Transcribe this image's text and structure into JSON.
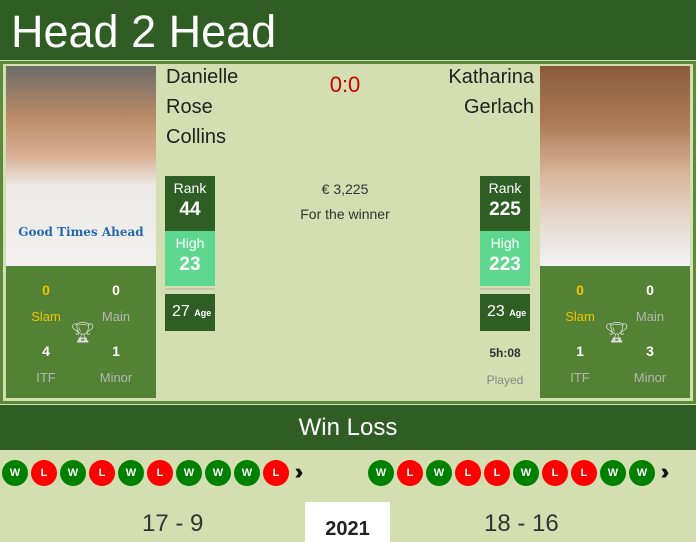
{
  "title": "Head 2 Head",
  "score": "0:0",
  "prize": {
    "amount": "€ 3,225",
    "label": "For the winner"
  },
  "players": [
    {
      "name_lines": [
        "Danielle",
        "Rose",
        "Collins"
      ],
      "shirt_text": "Good Times Ahead",
      "rank_label": "Rank",
      "rank": "44",
      "high_label": "High",
      "high": "23",
      "age": "27",
      "age_label": "Age",
      "titles": {
        "slam": "0",
        "slam_label": "Slam",
        "main": "0",
        "main_label": "Main",
        "itf": "4",
        "itf_label": "ITF",
        "minor": "1",
        "minor_label": "Minor"
      },
      "form": [
        "W",
        "L",
        "W",
        "L",
        "W",
        "L",
        "W",
        "W",
        "W",
        "L"
      ],
      "record": "17 - 9"
    },
    {
      "name_lines": [
        "Katharina",
        "Gerlach"
      ],
      "rank_label": "Rank",
      "rank": "225",
      "high_label": "High",
      "high": "223",
      "age": "23",
      "age_label": "Age",
      "titles": {
        "slam": "0",
        "slam_label": "Slam",
        "main": "0",
        "main_label": "Main",
        "itf": "1",
        "itf_label": "ITF",
        "minor": "3",
        "minor_label": "Minor"
      },
      "form": [
        "W",
        "L",
        "W",
        "L",
        "L",
        "W",
        "L",
        "L",
        "W",
        "W"
      ],
      "record": "18 - 16"
    }
  ],
  "played": {
    "value": "5h:08",
    "label": "Played"
  },
  "winloss_title": "Win Loss",
  "year": "2021",
  "colors": {
    "win": "#008000",
    "loss": "#ff0000",
    "header": "#2f5d24",
    "slam": "#f2c200"
  }
}
